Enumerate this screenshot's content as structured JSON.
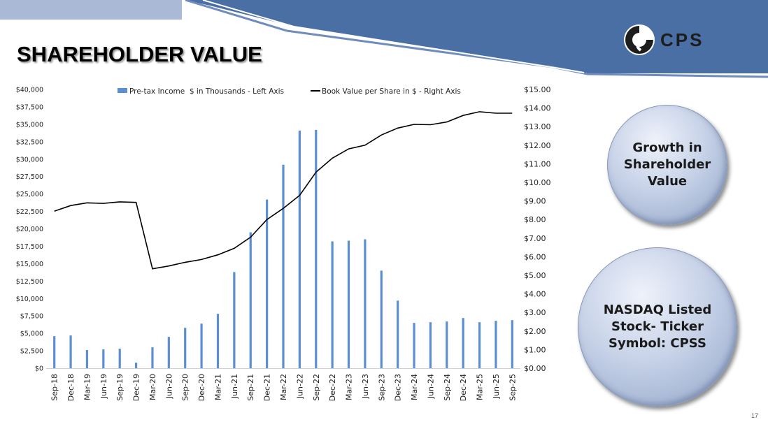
{
  "slide": {
    "title": "SHAREHOLDER VALUE",
    "logo_text": "CPS",
    "page_number": "17",
    "bubble_1": "Growth in\nShareholder\nValue",
    "bubble_2": "NASDAQ Listed\nStock- Ticker\nSymbol: CPSS"
  },
  "colors": {
    "banner_dark": "#4a6fa5",
    "banner_light": "#a9b9d6",
    "bar": "#5b8fd1",
    "line": "#000000"
  },
  "chart_data": {
    "type": "bar",
    "categories": [
      "Sep-18",
      "Dec-18",
      "Mar-19",
      "Jun-19",
      "Sep-19",
      "Dec-19",
      "Mar-20",
      "Jun-20",
      "Sep-20",
      "Dec-20",
      "Mar-21",
      "Jun-21",
      "Sep-21",
      "Dec-21",
      "Mar-22",
      "Jun-22",
      "Sep-22",
      "Dec-22",
      "Mar-23",
      "Jun-23",
      "Sep-23",
      "Dec-23",
      "Mar-24",
      "Jun-24",
      "Sep-24",
      "Dec-24",
      "Mar-25",
      "Jun-25",
      "Sep-25"
    ],
    "series": [
      {
        "name": "Pre-tax Income  $ in Thousands - Left Axis",
        "type": "bar",
        "axis": "left",
        "values": [
          4600,
          4700,
          2600,
          2700,
          2800,
          800,
          3000,
          4500,
          5800,
          6400,
          7800,
          13800,
          19500,
          24200,
          29200,
          34100,
          34200,
          18200,
          18300,
          18500,
          14000,
          9700,
          6500,
          6600,
          6700,
          7200,
          6600,
          6800,
          6900
        ]
      },
      {
        "name": "Book Value per Share in $ - Right Axis",
        "type": "line",
        "axis": "right",
        "values": [
          8.45,
          8.75,
          8.9,
          8.87,
          8.95,
          8.92,
          5.35,
          5.5,
          5.7,
          5.85,
          6.1,
          6.45,
          7.05,
          8.0,
          8.6,
          9.3,
          10.55,
          11.3,
          11.8,
          12.0,
          12.55,
          12.92,
          13.12,
          13.1,
          13.25,
          13.6,
          13.8,
          13.72,
          13.72
        ]
      }
    ],
    "y_left": {
      "ylim": [
        0,
        40000
      ],
      "tick_step": 2500,
      "tick_labels": [
        "$0",
        "$2,500",
        "$5,000",
        "$7,500",
        "$10,000",
        "$12,500",
        "$15,000",
        "$17,500",
        "$20,000",
        "$22,500",
        "$25,000",
        "$27,500",
        "$30,000",
        "$32,500",
        "$35,000",
        "$37,500",
        "$40,000"
      ]
    },
    "y_right": {
      "ylim": [
        0,
        15
      ],
      "tick_step": 1,
      "tick_labels": [
        "$0.00",
        "$1.00",
        "$2.00",
        "$3.00",
        "$4.00",
        "$5.00",
        "$6.00",
        "$7.00",
        "$8.00",
        "$9.00",
        "$10.00",
        "$11.00",
        "$12.00",
        "$13.00",
        "$14.00",
        "$15.00"
      ]
    },
    "legend_position": "top",
    "grid": false
  }
}
